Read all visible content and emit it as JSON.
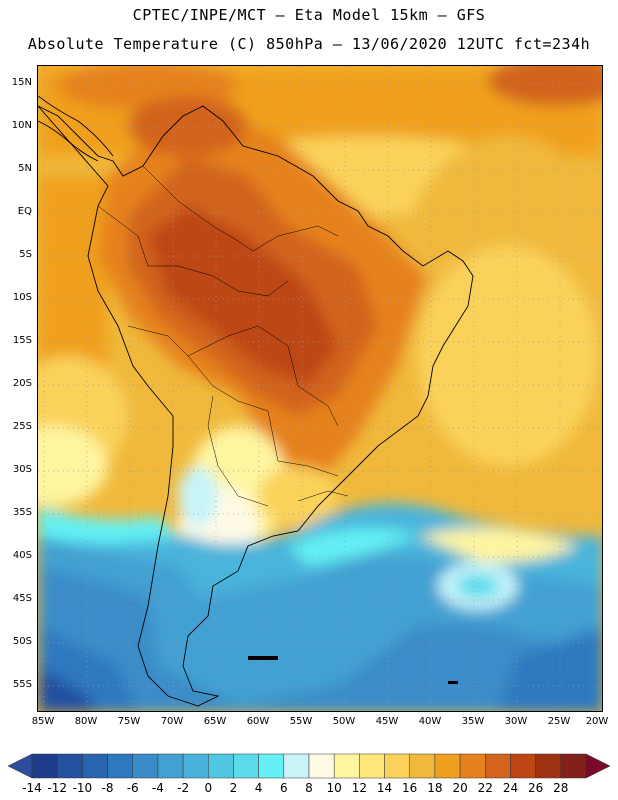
{
  "header": {
    "line1": "CPTEC/INPE/MCT –  Eta Model 15km – GFS",
    "line2": "Absolute Temperature (C) 850hPa – 13/06/2020 12UTC fct=234h"
  },
  "axes": {
    "latitudes": [
      "15N",
      "10N",
      "5N",
      "EQ",
      "5S",
      "10S",
      "15S",
      "20S",
      "25S",
      "30S",
      "35S",
      "40S",
      "45S",
      "50S",
      "55S"
    ],
    "longitudes": [
      "85W",
      "80W",
      "75W",
      "70W",
      "65W",
      "60W",
      "55W",
      "50W",
      "45W",
      "40W",
      "35W",
      "30W",
      "25W",
      "20W"
    ]
  },
  "legend": {
    "labels": [
      "-14",
      "-12",
      "-10",
      "-8",
      "-6",
      "-4",
      "-2",
      "0",
      "2",
      "4",
      "6",
      "8",
      "10",
      "12",
      "14",
      "16",
      "18",
      "20",
      "22",
      "24",
      "26",
      "28"
    ],
    "colors": [
      "#1e3c8c",
      "#2350a0",
      "#2864b0",
      "#2e78c0",
      "#3a8cc8",
      "#42a0d2",
      "#48b4dc",
      "#50c8e4",
      "#5adcec",
      "#64f0f4",
      "#c8f4fa",
      "#fffae6",
      "#fff5a0",
      "#ffe678",
      "#fad25a",
      "#f0b93c",
      "#f0a01e",
      "#e6821e",
      "#d2641e",
      "#be4614",
      "#a03214",
      "#82201a"
    ],
    "low_color": "#2d4d9b",
    "high_color": "#7a0a28"
  }
}
